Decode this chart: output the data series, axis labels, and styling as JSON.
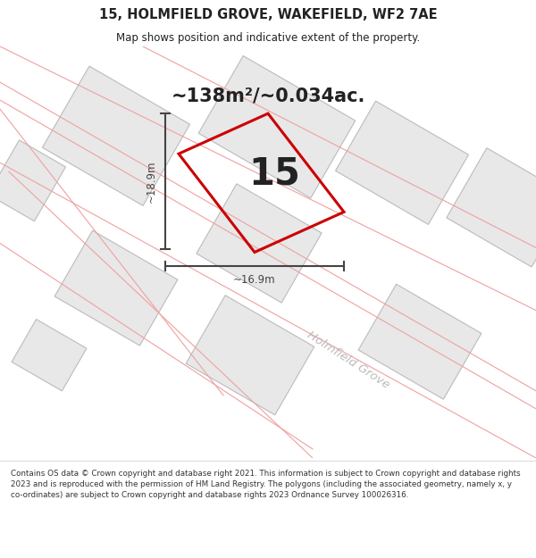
{
  "title_line1": "15, HOLMFIELD GROVE, WAKEFIELD, WF2 7AE",
  "title_line2": "Map shows position and indicative extent of the property.",
  "area_label": "~138m²/~0.034ac.",
  "property_number": "15",
  "dim_width": "~16.9m",
  "dim_height": "~18.9m",
  "street_label": "Holmfield Grove",
  "footer_text": "Contains OS data © Crown copyright and database right 2021. This information is subject to Crown copyright and database rights 2023 and is reproduced with the permission of HM Land Registry. The polygons (including the associated geometry, namely x, y co-ordinates) are subject to Crown copyright and database rights 2023 Ordnance Survey 100026316.",
  "map_bg": "#ffffff",
  "property_outline_color": "#cc0000",
  "neighbor_fill_color": "#e8e8e8",
  "neighbor_edge_color": "#bbbbbb",
  "road_line_color": "#f0a0a0",
  "text_color": "#222222",
  "dim_color": "#444444",
  "street_text_color": "#bbbbbb",
  "title_fontsize": 10.5,
  "subtitle_fontsize": 8.5,
  "area_fontsize": 15,
  "num_fontsize": 30
}
